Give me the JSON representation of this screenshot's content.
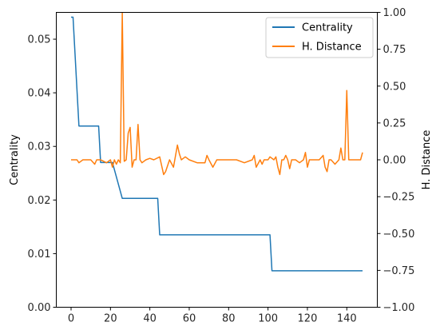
{
  "chart_data": {
    "type": "line",
    "xlabel": "",
    "ylabel_left": "Centrality",
    "ylabel_right": "H. Distance",
    "xlim": [
      -7.5,
      155.5
    ],
    "ylim_left": [
      0,
      0.055
    ],
    "ylim_right": [
      -1.0,
      1.0
    ],
    "x_ticks": [
      0,
      20,
      40,
      60,
      80,
      100,
      120,
      140
    ],
    "y_left_ticks": [
      0.0,
      0.01,
      0.02,
      0.03,
      0.04,
      0.05
    ],
    "y_left_tick_labels": [
      "0.00",
      "0.01",
      "0.02",
      "0.03",
      "0.04",
      "0.05"
    ],
    "y_right_ticks": [
      -1.0,
      -0.75,
      -0.5,
      -0.25,
      0.0,
      0.25,
      0.5,
      0.75,
      1.0
    ],
    "y_right_tick_labels": [
      "−1.00",
      "−0.75",
      "−0.50",
      "−0.25",
      "0.00",
      "0.25",
      "0.50",
      "0.75",
      "1.00"
    ],
    "grid": false,
    "legend_position": "top-right",
    "series": [
      {
        "name": "Centrality",
        "axis": "left",
        "color": "#1f77b4",
        "x": [
          0,
          1,
          4,
          14,
          15,
          21,
          26,
          44,
          45,
          101,
          102,
          148
        ],
        "y": [
          0.0541,
          0.0541,
          0.0338,
          0.0338,
          0.027,
          0.027,
          0.0203,
          0.0203,
          0.0135,
          0.0135,
          0.0068,
          0.0068
        ]
      },
      {
        "name": "H. Distance",
        "axis": "right",
        "color": "#ff7f0e",
        "x": [
          0,
          3,
          4,
          6,
          10,
          12,
          13,
          15,
          18,
          20,
          21,
          22,
          23,
          24,
          25,
          26,
          27,
          28,
          29,
          30,
          31,
          32,
          33,
          34,
          35,
          36,
          38,
          40,
          42,
          45,
          46,
          47,
          48,
          50,
          52,
          54,
          55,
          56,
          58,
          60,
          64,
          68,
          69,
          70,
          72,
          74,
          76,
          80,
          84,
          88,
          92,
          93,
          94,
          96,
          97,
          98,
          100,
          101,
          103,
          104,
          105,
          106,
          107,
          108,
          109,
          110,
          111,
          112,
          114,
          116,
          118,
          119,
          120,
          121,
          122,
          124,
          126,
          128,
          129,
          130,
          131,
          132,
          134,
          136,
          137,
          138,
          139,
          140,
          141,
          142,
          144,
          146,
          147,
          148
        ],
        "y": [
          0.0,
          0.0,
          -0.02,
          0.0,
          0.0,
          -0.03,
          0.0,
          0.0,
          -0.02,
          0.0,
          -0.05,
          0.0,
          -0.03,
          0.0,
          -0.02,
          1.0,
          -0.01,
          0.0,
          0.18,
          0.22,
          -0.05,
          0.0,
          0.0,
          0.24,
          0.0,
          -0.02,
          0.0,
          0.01,
          0.0,
          0.02,
          -0.04,
          -0.1,
          -0.08,
          0.0,
          -0.05,
          0.1,
          0.04,
          0.0,
          0.02,
          0.0,
          -0.02,
          -0.02,
          0.03,
          0.0,
          -0.05,
          0.0,
          0.0,
          0.0,
          0.0,
          -0.02,
          0.0,
          0.03,
          -0.05,
          0.0,
          -0.03,
          0.0,
          0.0,
          0.02,
          0.0,
          0.02,
          -0.05,
          -0.1,
          0.0,
          0.0,
          0.03,
          0.0,
          -0.06,
          0.0,
          0.0,
          -0.02,
          0.0,
          0.05,
          -0.05,
          0.0,
          0.0,
          0.0,
          0.0,
          0.03,
          -0.05,
          -0.08,
          0.0,
          0.0,
          -0.03,
          0.0,
          0.08,
          0.0,
          0.0,
          0.47,
          0.0,
          0.0,
          0.0,
          0.0,
          0.0,
          0.05
        ]
      }
    ]
  }
}
